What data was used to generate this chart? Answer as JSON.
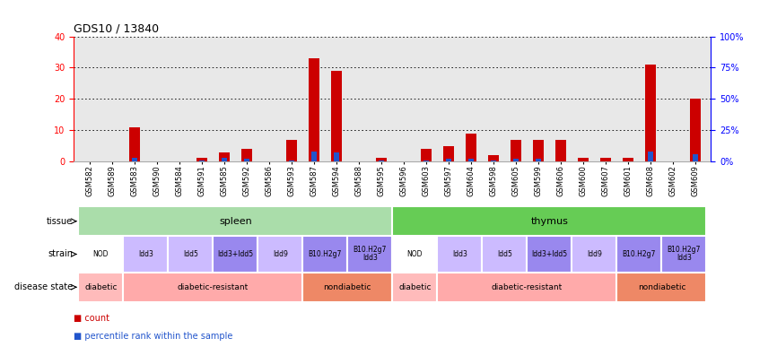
{
  "title": "GDS10 / 13840",
  "samples": [
    "GSM582",
    "GSM589",
    "GSM583",
    "GSM590",
    "GSM584",
    "GSM591",
    "GSM585",
    "GSM592",
    "GSM586",
    "GSM593",
    "GSM587",
    "GSM594",
    "GSM588",
    "GSM595",
    "GSM596",
    "GSM603",
    "GSM597",
    "GSM604",
    "GSM598",
    "GSM605",
    "GSM599",
    "GSM606",
    "GSM600",
    "GSM607",
    "GSM601",
    "GSM608",
    "GSM602",
    "GSM609"
  ],
  "count_values": [
    0,
    0,
    11,
    0,
    0,
    1,
    3,
    4,
    0,
    7,
    33,
    29,
    0,
    1,
    0,
    4,
    5,
    9,
    2,
    7,
    7,
    7,
    1,
    1,
    1,
    31,
    0,
    20
  ],
  "percentile_values": [
    0,
    0,
    3,
    0,
    0,
    1,
    3,
    2,
    0,
    1,
    8,
    7,
    0,
    1,
    0,
    1,
    2,
    2,
    1,
    2,
    2,
    0,
    0,
    0,
    0,
    8,
    0,
    6
  ],
  "tissue": [
    {
      "label": "spleen",
      "start": 0,
      "end": 14,
      "color": "#aaddaa"
    },
    {
      "label": "thymus",
      "start": 14,
      "end": 28,
      "color": "#66cc55"
    }
  ],
  "strain": [
    {
      "label": "NOD",
      "start": 0,
      "end": 2,
      "color": "#ffffff"
    },
    {
      "label": "Idd3",
      "start": 2,
      "end": 4,
      "color": "#ccbbff"
    },
    {
      "label": "Idd5",
      "start": 4,
      "end": 6,
      "color": "#ccbbff"
    },
    {
      "label": "Idd3+Idd5",
      "start": 6,
      "end": 8,
      "color": "#9988ee"
    },
    {
      "label": "Idd9",
      "start": 8,
      "end": 10,
      "color": "#ccbbff"
    },
    {
      "label": "B10.H2g7",
      "start": 10,
      "end": 12,
      "color": "#9988ee"
    },
    {
      "label": "B10.H2g7\nIdd3",
      "start": 12,
      "end": 14,
      "color": "#9988ee"
    },
    {
      "label": "NOD",
      "start": 14,
      "end": 16,
      "color": "#ffffff"
    },
    {
      "label": "Idd3",
      "start": 16,
      "end": 18,
      "color": "#ccbbff"
    },
    {
      "label": "Idd5",
      "start": 18,
      "end": 20,
      "color": "#ccbbff"
    },
    {
      "label": "Idd3+Idd5",
      "start": 20,
      "end": 22,
      "color": "#9988ee"
    },
    {
      "label": "Idd9",
      "start": 22,
      "end": 24,
      "color": "#ccbbff"
    },
    {
      "label": "B10.H2g7",
      "start": 24,
      "end": 26,
      "color": "#9988ee"
    },
    {
      "label": "B10.H2g7\nIdd3",
      "start": 26,
      "end": 28,
      "color": "#9988ee"
    }
  ],
  "disease_state": [
    {
      "label": "diabetic",
      "start": 0,
      "end": 2,
      "color": "#ffbbbb"
    },
    {
      "label": "diabetic-resistant",
      "start": 2,
      "end": 10,
      "color": "#ffaaaa"
    },
    {
      "label": "nondiabetic",
      "start": 10,
      "end": 14,
      "color": "#ee8866"
    },
    {
      "label": "diabetic",
      "start": 14,
      "end": 16,
      "color": "#ffbbbb"
    },
    {
      "label": "diabetic-resistant",
      "start": 16,
      "end": 24,
      "color": "#ffaaaa"
    },
    {
      "label": "nondiabetic",
      "start": 24,
      "end": 28,
      "color": "#ee8866"
    }
  ],
  "ylim_left": [
    0,
    40
  ],
  "ylim_right": [
    0,
    100
  ],
  "yticks_left": [
    0,
    10,
    20,
    30,
    40
  ],
  "yticks_right": [
    0,
    25,
    50,
    75,
    100
  ],
  "bar_color_count": "#cc0000",
  "bar_color_percentile": "#2255cc",
  "chart_bg": "#e8e8e8"
}
